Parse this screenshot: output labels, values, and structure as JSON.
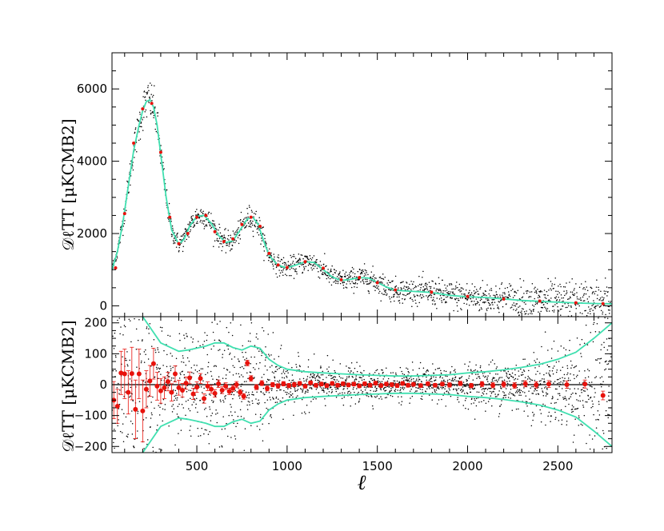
{
  "chart_data": [
    {
      "type": "scatter",
      "panel": "top",
      "ylabel": "𝒟ℓTT [μKCMB2]",
      "xlim": [
        30,
        2800
      ],
      "ylim": [
        -300,
        7000
      ],
      "xticks": [
        500,
        1000,
        1500,
        2000,
        2500
      ],
      "yticks": [
        0,
        2000,
        4000,
        6000
      ],
      "ytick_labels": [
        "0",
        "2000",
        "4000",
        "6000"
      ],
      "grid": false,
      "series": [
        {
          "role": "best-fit model",
          "color": "#40e0b0",
          "x": [
            30,
            60,
            90,
            120,
            150,
            180,
            200,
            220,
            240,
            260,
            280,
            300,
            330,
            360,
            400,
            430,
            460,
            500,
            540,
            580,
            620,
            660,
            700,
            740,
            780,
            810,
            840,
            870,
            900,
            950,
            1000,
            1050,
            1100,
            1150,
            1200,
            1250,
            1300,
            1350,
            1400,
            1450,
            1500,
            1550,
            1600,
            1700,
            1800,
            1900,
            2000,
            2100,
            2200,
            2300,
            2400,
            2500,
            2600,
            2700,
            2800
          ],
          "y": [
            1000,
            1500,
            2300,
            3300,
            4300,
            5000,
            5400,
            5650,
            5700,
            5500,
            5000,
            4200,
            3000,
            2100,
            1700,
            1850,
            2200,
            2480,
            2500,
            2280,
            1950,
            1750,
            1800,
            2100,
            2400,
            2450,
            2250,
            1800,
            1400,
            1120,
            1050,
            1130,
            1220,
            1200,
            1000,
            800,
            700,
            730,
            780,
            770,
            650,
            520,
            430,
            400,
            370,
            290,
            250,
            230,
            190,
            150,
            125,
            100,
            80,
            65,
            55
          ]
        },
        {
          "role": "binned data points",
          "color": "#e8120c",
          "x": [
            50,
            100,
            150,
            200,
            250,
            300,
            350,
            400,
            450,
            500,
            550,
            600,
            650,
            700,
            750,
            800,
            850,
            900,
            950,
            1000,
            1100,
            1200,
            1300,
            1400,
            1500,
            1600,
            1800,
            2000,
            2200,
            2400,
            2600,
            2750
          ],
          "y": [
            1050,
            2550,
            4500,
            5450,
            5600,
            4250,
            2450,
            1720,
            2000,
            2450,
            2500,
            2050,
            1780,
            1850,
            2250,
            2450,
            2200,
            1450,
            1130,
            1060,
            1220,
            1040,
            720,
            780,
            640,
            440,
            380,
            260,
            190,
            130,
            85,
            60
          ]
        }
      ]
    },
    {
      "type": "scatter",
      "panel": "bottom",
      "xlabel": "ℓ",
      "ylabel": "𝒟ℓTT [μKCMB2]",
      "xlim": [
        30,
        2800
      ],
      "ylim": [
        -220,
        220
      ],
      "xticks": [
        500,
        1000,
        1500,
        2000,
        2500
      ],
      "xtick_labels": [
        "500",
        "1000",
        "1500",
        "2000",
        "2500"
      ],
      "yticks": [
        -200,
        -100,
        0,
        100,
        200
      ],
      "ytick_labels": [
        "−200",
        "−100",
        "0",
        "100",
        "200"
      ],
      "grid": false,
      "zero_line": true,
      "series": [
        {
          "role": "upper 1-sigma envelope",
          "color": "#40e0b0",
          "x": [
            200,
            300,
            400,
            450,
            500,
            550,
            600,
            650,
            700,
            750,
            800,
            850,
            900,
            950,
            1000,
            1100,
            1200,
            1300,
            1400,
            1500,
            1600,
            1700,
            1800,
            1900,
            2000,
            2100,
            2200,
            2300,
            2400,
            2500,
            2600,
            2700,
            2800
          ],
          "y": [
            230,
            135,
            108,
            112,
            118,
            125,
            135,
            135,
            120,
            112,
            125,
            118,
            82,
            62,
            50,
            42,
            38,
            35,
            32,
            30,
            28,
            28,
            30,
            32,
            38,
            42,
            48,
            56,
            66,
            82,
            105,
            150,
            200
          ]
        },
        {
          "role": "lower 1-sigma envelope",
          "color": "#40e0b0",
          "x": [
            200,
            300,
            400,
            450,
            500,
            550,
            600,
            650,
            700,
            750,
            800,
            850,
            900,
            950,
            1000,
            1100,
            1200,
            1300,
            1400,
            1500,
            1600,
            1700,
            1800,
            1900,
            2000,
            2100,
            2200,
            2300,
            2400,
            2500,
            2600,
            2700,
            2800
          ],
          "y": [
            -230,
            -135,
            -108,
            -112,
            -118,
            -125,
            -135,
            -135,
            -120,
            -112,
            -125,
            -118,
            -82,
            -62,
            -50,
            -42,
            -38,
            -35,
            -32,
            -30,
            -28,
            -28,
            -30,
            -32,
            -38,
            -42,
            -48,
            -56,
            -66,
            -82,
            -105,
            -150,
            -200
          ]
        },
        {
          "role": "binned residuals",
          "color": "#e8120c",
          "x": [
            40,
            60,
            80,
            100,
            120,
            140,
            160,
            180,
            200,
            220,
            240,
            260,
            280,
            300,
            320,
            340,
            360,
            380,
            400,
            420,
            440,
            460,
            480,
            500,
            520,
            540,
            560,
            580,
            600,
            620,
            640,
            660,
            680,
            700,
            720,
            740,
            760,
            780,
            800,
            830,
            860,
            890,
            920,
            950,
            980,
            1010,
            1040,
            1070,
            1100,
            1130,
            1160,
            1190,
            1220,
            1250,
            1280,
            1310,
            1340,
            1370,
            1400,
            1430,
            1460,
            1490,
            1520,
            1550,
            1580,
            1610,
            1640,
            1670,
            1700,
            1740,
            1780,
            1820,
            1860,
            1900,
            1960,
            2020,
            2080,
            2140,
            2200,
            2260,
            2320,
            2380,
            2450,
            2550,
            2650,
            2750
          ],
          "y": [
            -50,
            -70,
            38,
            35,
            -25,
            36,
            -80,
            35,
            -85,
            -15,
            12,
            68,
            -5,
            -20,
            -10,
            10,
            -25,
            35,
            -10,
            -18,
            5,
            22,
            -30,
            -8,
            20,
            -45,
            -5,
            -15,
            -28,
            3,
            -18,
            -5,
            -22,
            -12,
            0,
            -25,
            -38,
            70,
            20,
            -8,
            5,
            -12,
            0,
            -4,
            3,
            -3,
            0,
            4,
            -5,
            6,
            -2,
            2,
            -3,
            4,
            -2,
            3,
            -1,
            2,
            -4,
            3,
            -2,
            5,
            -3,
            2,
            0,
            -3,
            4,
            -2,
            1,
            -3,
            3,
            -2,
            2,
            -1,
            4,
            -3,
            2,
            -2,
            1,
            -3,
            3,
            -1,
            2,
            0,
            2,
            -35
          ],
          "yerr": [
            60,
            55,
            70,
            80,
            70,
            85,
            95,
            80,
            100,
            60,
            50,
            50,
            45,
            40,
            35,
            30,
            28,
            26,
            24,
            22,
            20,
            19,
            18,
            17,
            16,
            15,
            14,
            13,
            12,
            12,
            11,
            11,
            10,
            10,
            10,
            9,
            9,
            9,
            9,
            8,
            8,
            8,
            7,
            7,
            7,
            7,
            7,
            6,
            6,
            6,
            6,
            6,
            6,
            6,
            6,
            6,
            6,
            6,
            6,
            6,
            6,
            6,
            6,
            6,
            6,
            6,
            6,
            6,
            6,
            6,
            6,
            6,
            6,
            7,
            7,
            7,
            8,
            8,
            9,
            9,
            10,
            10,
            11,
            12,
            13,
            14
          ]
        }
      ]
    }
  ]
}
